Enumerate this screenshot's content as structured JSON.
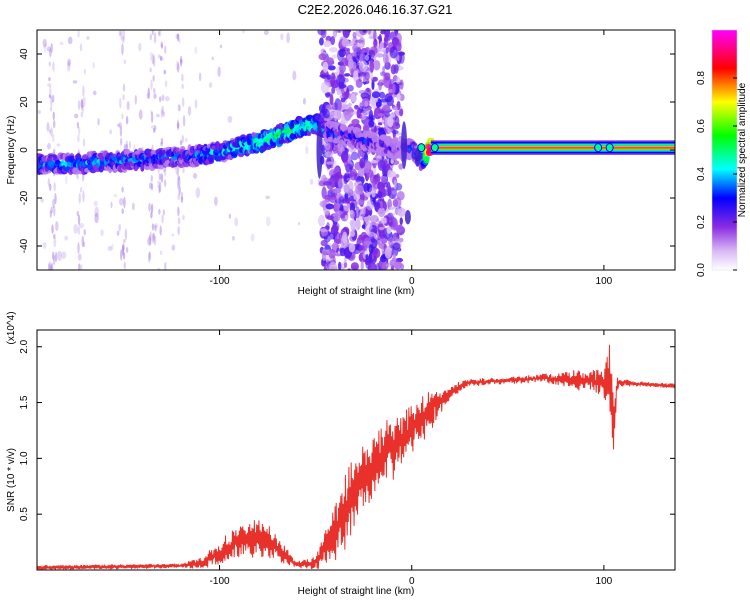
{
  "title": "C2E2.2026.046.16.37.G21",
  "chart_data": [
    {
      "type": "heatmap",
      "xlabel": "Height of straight line (km)",
      "ylabel": "Frequency (Hz)",
      "xlim": [
        -195,
        137
      ],
      "ylim": [
        -50,
        50
      ],
      "xticks": [
        -100,
        0,
        100
      ],
      "yticks": [
        -40,
        -20,
        0,
        20,
        40
      ],
      "colorbar": {
        "label": "Normalized spectral amplitude",
        "range": [
          0,
          1
        ],
        "ticks": [
          0.0,
          0.2,
          0.4,
          0.6,
          0.8
        ],
        "tick_labels": [
          "0.0",
          "0.2",
          "0.4",
          "0.6",
          "0.8"
        ],
        "colormap": [
          "#ffffff",
          "#8a2be2",
          "#0000ff",
          "#00ffff",
          "#00ff00",
          "#ffff00",
          "#ff0000",
          "#ff00ff"
        ]
      },
      "ridge": {
        "x": [
          -195,
          -180,
          -160,
          -140,
          -120,
          -100,
          -80,
          -60,
          -50,
          -45,
          -5,
          0,
          5,
          10,
          20,
          50,
          100,
          137
        ],
        "frequency_hz": [
          -6,
          -6,
          -5,
          -4,
          -3,
          -1,
          3,
          9,
          11,
          8,
          0,
          1,
          -4,
          1,
          1,
          1,
          1,
          1
        ],
        "amplitude": [
          0.35,
          0.35,
          0.35,
          0.35,
          0.3,
          0.4,
          0.45,
          0.5,
          0.45,
          0.3,
          0.2,
          0.3,
          0.3,
          0.95,
          0.95,
          0.95,
          0.95,
          0.95
        ]
      },
      "noise_band_x": [
        -47,
        -5
      ]
    },
    {
      "type": "line",
      "xlabel": "Height of straight line (km)",
      "ylabel": "SNR (10 * v/v)",
      "scale_label": "(x10^4)",
      "xlim": [
        -195,
        137
      ],
      "ylim": [
        0,
        2.15
      ],
      "xticks": [
        -100,
        0,
        100
      ],
      "yticks": [
        0.5,
        1.0,
        1.5,
        2.0
      ],
      "ytick_labels": [
        "0.5",
        "1.0",
        "1.5",
        "2.0"
      ],
      "color": "#e8312b",
      "series": [
        {
          "x": [
            -195,
            -150,
            -120,
            -110,
            -100,
            -90,
            -80,
            -70,
            -60,
            -50,
            -40,
            -30,
            -20,
            -10,
            0,
            10,
            15,
            20,
            30,
            50,
            70,
            85,
            95,
            100,
            103,
            105,
            107,
            115,
            125,
            137
          ],
          "values": [
            0.02,
            0.03,
            0.04,
            0.06,
            0.15,
            0.25,
            0.3,
            0.2,
            0.05,
            0.06,
            0.35,
            0.7,
            0.95,
            1.1,
            1.25,
            1.45,
            1.5,
            1.6,
            1.68,
            1.7,
            1.72,
            1.7,
            1.7,
            1.68,
            1.75,
            1.3,
            1.68,
            1.67,
            1.66,
            1.65
          ],
          "noise_amp": [
            0.02,
            0.02,
            0.02,
            0.05,
            0.1,
            0.14,
            0.16,
            0.12,
            0.03,
            0.06,
            0.28,
            0.32,
            0.3,
            0.28,
            0.22,
            0.2,
            0.1,
            0.06,
            0.03,
            0.03,
            0.04,
            0.08,
            0.1,
            0.12,
            0.4,
            0.35,
            0.05,
            0.02,
            0.02,
            0.02
          ]
        }
      ]
    }
  ]
}
